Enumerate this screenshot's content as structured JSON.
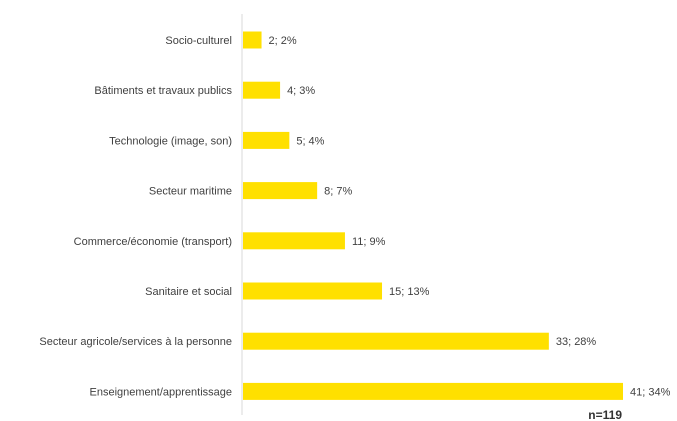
{
  "chart_data": {
    "type": "bar",
    "orientation": "horizontal",
    "categories": [
      "Socio-culturel",
      "Bâtiments et travaux publics",
      "Technologie (image, son)",
      "Secteur maritime",
      "Commerce/économie (transport)",
      "Sanitaire et social",
      "Secteur agricole/services à la personne",
      "Enseignement/apprentissage"
    ],
    "values": [
      2,
      4,
      5,
      8,
      11,
      15,
      33,
      41
    ],
    "percentages": [
      2,
      3,
      4,
      7,
      9,
      13,
      28,
      34
    ],
    "data_labels": [
      "2; 2%",
      "4; 3%",
      "5; 4%",
      "8; 7%",
      "11; 9%",
      "15; 13%",
      "33; 28%",
      "41; 34%"
    ],
    "xlim": [
      0,
      41
    ],
    "grid": false,
    "legend": "none",
    "bar_color": "#FFE000",
    "annotation": "n=119"
  }
}
